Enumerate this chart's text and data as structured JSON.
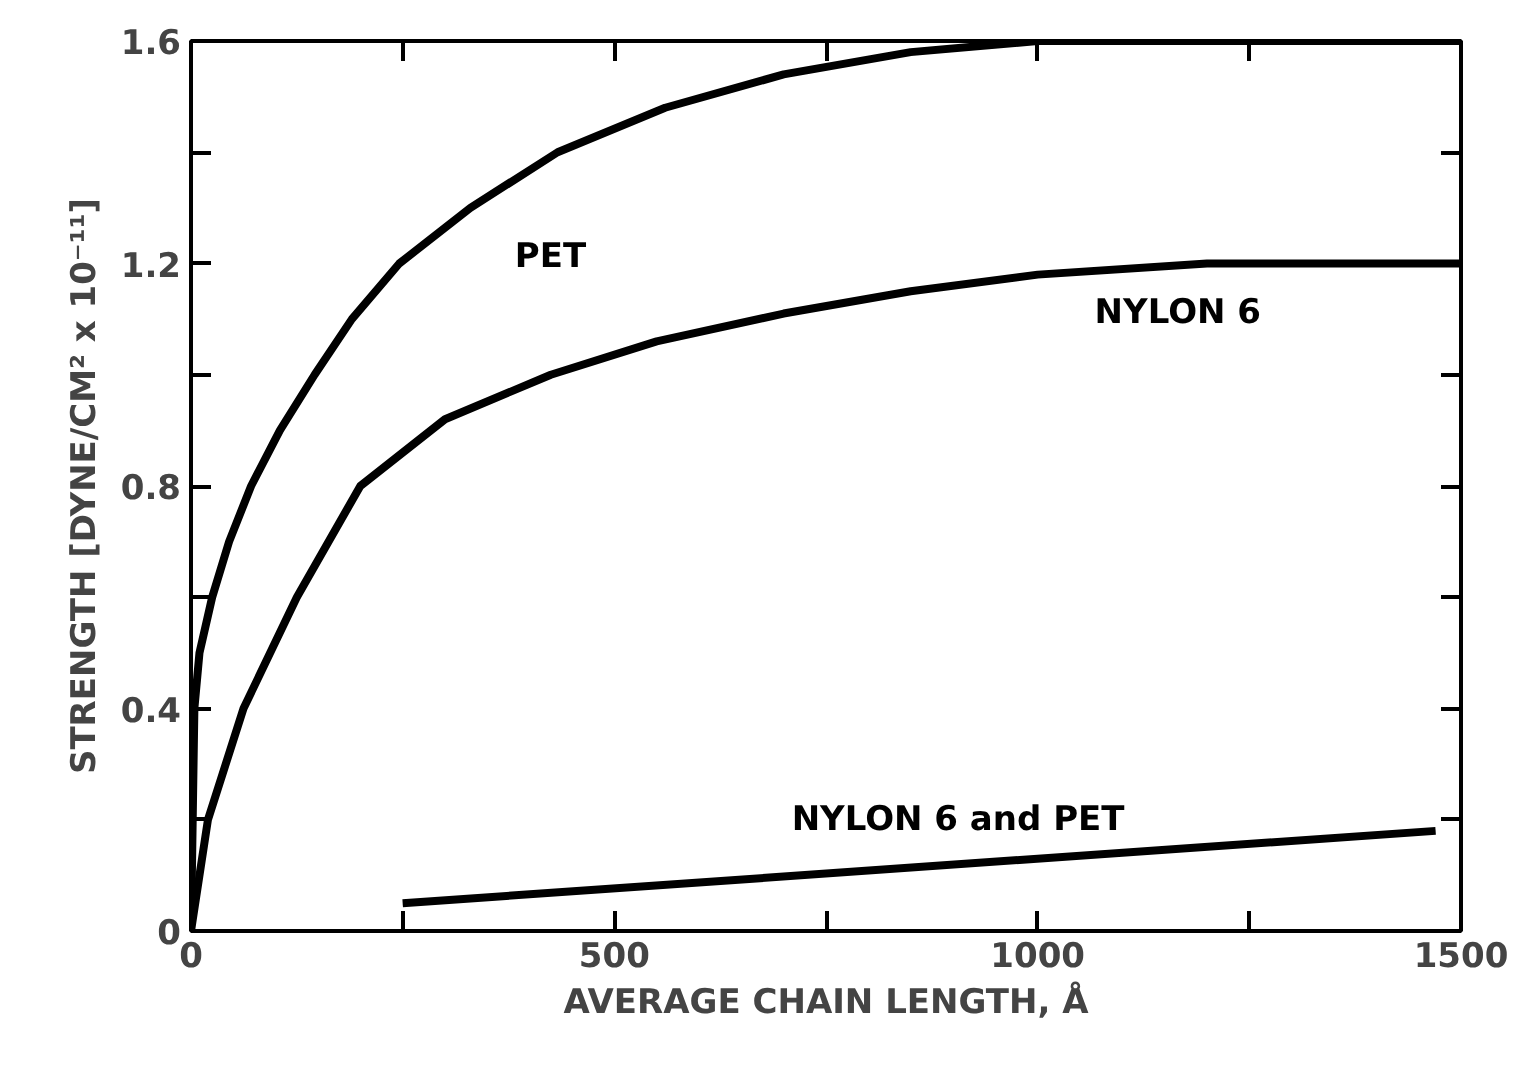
{
  "chart_data": {
    "type": "line",
    "xlabel": "AVERAGE CHAIN LENGTH, Å",
    "ylabel": "STRENGTH [DYNE/CM² x 10⁻¹¹]",
    "xlim": [
      0,
      1500
    ],
    "ylim": [
      0,
      1.6
    ],
    "xticks": [
      0,
      {
        "value": 250,
        "label": null
      },
      500,
      {
        "value": 750,
        "label": null
      },
      1000,
      {
        "value": 1250,
        "label": null
      },
      1500
    ],
    "yticks": [
      0,
      {
        "value": 0.2,
        "label": null
      },
      0.4,
      {
        "value": 0.6,
        "label": null
      },
      0.8,
      {
        "value": 1.0,
        "label": null
      },
      1.2,
      {
        "value": 1.4,
        "label": null
      },
      1.6
    ],
    "grid": false,
    "marker": "none",
    "line_style": "solid",
    "series": [
      {
        "name": "PET",
        "color": "#000000",
        "x": [
          0,
          4,
          10,
          25,
          45,
          71,
          105,
          146,
          190,
          246,
          330,
          433,
          560,
          700,
          850,
          1000,
          1500
        ],
        "values": [
          0,
          0.4,
          0.5,
          0.6,
          0.7,
          0.8,
          0.9,
          1.0,
          1.1,
          1.2,
          1.3,
          1.4,
          1.48,
          1.54,
          1.58,
          1.6,
          1.6
        ]
      },
      {
        "name": "NYLON 6",
        "color": "#000000",
        "x": [
          0,
          20,
          62,
          125,
          200,
          300,
          425,
          550,
          700,
          850,
          1000,
          1200,
          1500
        ],
        "values": [
          0,
          0.2,
          0.4,
          0.6,
          0.8,
          0.92,
          1.0,
          1.06,
          1.11,
          1.15,
          1.18,
          1.2,
          1.2
        ]
      },
      {
        "name": "NYLON 6 and PET",
        "color": "#000000",
        "x": [
          250,
          1470
        ],
        "values": [
          0.05,
          0.18
        ]
      }
    ]
  }
}
